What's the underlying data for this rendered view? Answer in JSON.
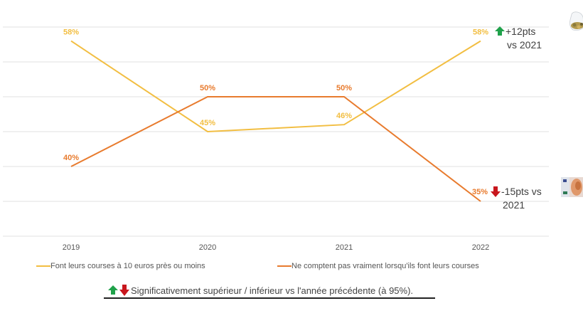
{
  "chart_data": {
    "type": "line",
    "title": "",
    "xlabel": "",
    "ylabel": "",
    "ylim": [
      30,
      60
    ],
    "y_gridlines": [
      30,
      35,
      40,
      45,
      50,
      55,
      60
    ],
    "grid": true,
    "categories": [
      "2019",
      "2020",
      "2021",
      "2022"
    ],
    "series": [
      {
        "name": "Font leurs courses à 10 euros près ou moins",
        "color": "#F2BE42",
        "values": [
          58,
          45,
          46,
          58
        ],
        "labels": [
          "58%",
          "45%",
          "46%",
          "58%"
        ]
      },
      {
        "name": "Ne comptent pas vraiment lorsqu'ils font leurs courses",
        "color": "#E87B2E",
        "values": [
          40,
          50,
          50,
          35
        ],
        "labels": [
          "40%",
          "50%",
          "50%",
          "35%"
        ]
      }
    ],
    "legend_position": "bottom",
    "annotations": [
      {
        "series": 0,
        "category": "2022",
        "direction": "up",
        "line1": "+12pts",
        "line2": "vs 2021"
      },
      {
        "series": 1,
        "category": "2022",
        "direction": "down",
        "line1": "-15pts vs",
        "line2": "2021"
      }
    ]
  },
  "footnote": {
    "text": "Significativement supérieur / inférieur vs l'année précédente (à 95%).",
    "up_color": "#1FA14A",
    "down_color": "#C8161D"
  },
  "images": {
    "top_right": "coin-jar-icon",
    "bottom_right": "euro-banknote-icon"
  }
}
